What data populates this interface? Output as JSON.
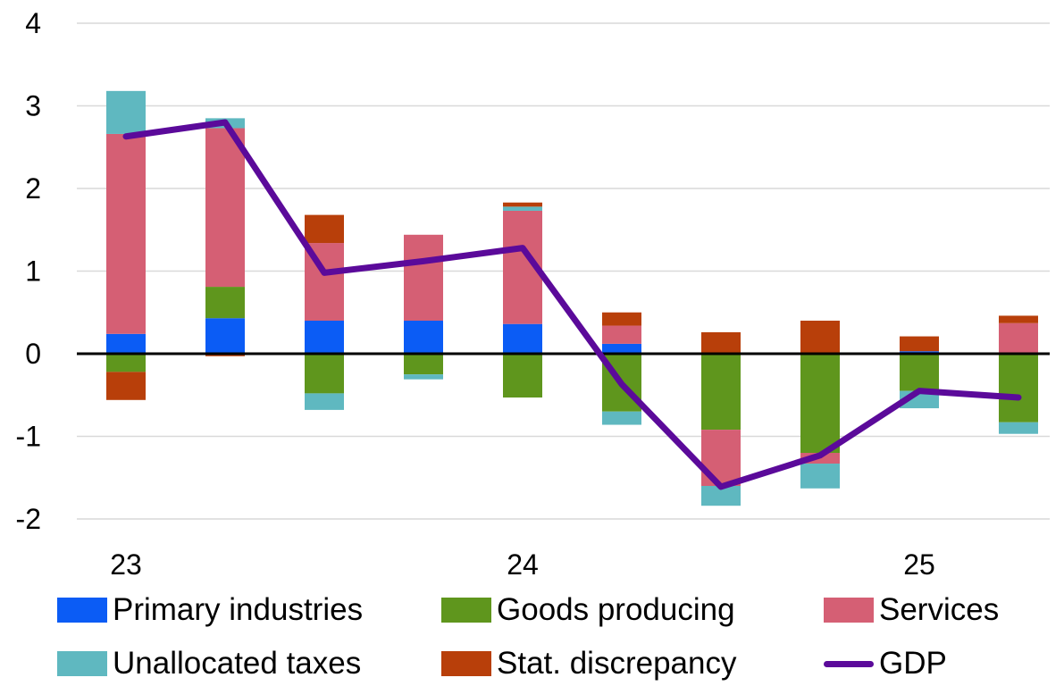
{
  "chart_data": {
    "type": "bar",
    "stacked": true,
    "ylim": [
      -2,
      4
    ],
    "yticks": [
      4,
      3,
      2,
      1,
      0,
      -1,
      -2
    ],
    "x_tick_labels": [
      {
        "index": 0,
        "label": "23"
      },
      {
        "index": 4,
        "label": "24"
      },
      {
        "index": 8,
        "label": "25"
      }
    ],
    "categories_count": 10,
    "grid": true,
    "legend_position": "bottom",
    "series": [
      {
        "name": "Primary industries",
        "kind": "bar",
        "color": "#0b5cf5",
        "values": [
          0.24,
          0.43,
          0.4,
          0.4,
          0.36,
          0.12,
          0.0,
          0.0,
          0.03,
          0.0
        ]
      },
      {
        "name": "Goods producing",
        "kind": "bar",
        "color": "#5f961d",
        "values": [
          -0.22,
          0.38,
          -0.48,
          -0.25,
          -0.53,
          -0.7,
          -0.92,
          -1.2,
          -0.45,
          -0.83
        ]
      },
      {
        "name": "Services",
        "kind": "bar",
        "color": "#d55f74",
        "values": [
          2.42,
          1.92,
          0.94,
          1.04,
          1.37,
          0.22,
          -0.68,
          -0.13,
          0.0,
          0.37
        ]
      },
      {
        "name": "Unallocated taxes",
        "kind": "bar",
        "color": "#5fb8c0",
        "values": [
          0.52,
          0.12,
          -0.2,
          -0.06,
          0.05,
          -0.16,
          -0.24,
          -0.3,
          -0.21,
          -0.14
        ]
      },
      {
        "name": "Stat. discrepancy",
        "kind": "bar",
        "color": "#b83f0a",
        "values": [
          -0.34,
          -0.03,
          0.34,
          0.0,
          0.05,
          0.16,
          0.26,
          0.4,
          0.18,
          0.09
        ]
      },
      {
        "name": "GDP",
        "kind": "line",
        "color": "#5b0a9a",
        "values": [
          2.63,
          2.8,
          0.98,
          1.12,
          1.28,
          -0.37,
          -1.61,
          -1.23,
          -0.45,
          -0.53
        ]
      }
    ]
  }
}
